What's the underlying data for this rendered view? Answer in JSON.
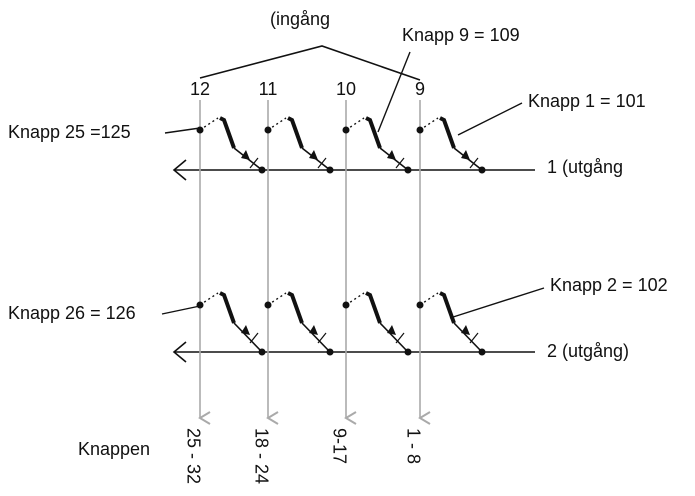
{
  "input_label": "(ingång",
  "columns": [
    {
      "label": "12",
      "range": "25 - 32"
    },
    {
      "label": "11",
      "range": "18 - 24"
    },
    {
      "label": "10",
      "range": "9-17"
    },
    {
      "label": "9",
      "range": "1 - 8"
    }
  ],
  "callouts": {
    "knapp9": "Knapp 9 = 109",
    "knapp1": "Knapp 1 = 101",
    "knapp25": "Knapp 25 =125",
    "knapp26": "Knapp 26 = 126",
    "knapp2": "Knapp 2 = 102"
  },
  "outputs": [
    "1 (utgång",
    "2 (utgång)"
  ],
  "footer_label": "Knappen"
}
